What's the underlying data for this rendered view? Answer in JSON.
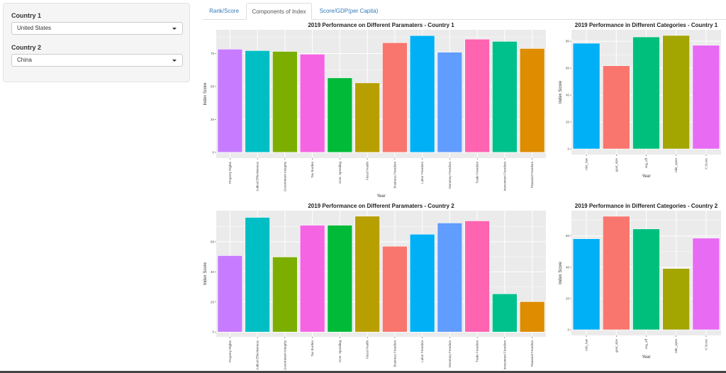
{
  "sidebar": {
    "country1": {
      "label": "Country 1",
      "value": "United States"
    },
    "country2": {
      "label": "Country 2",
      "value": "China"
    }
  },
  "tabs": [
    {
      "label": "Rank/Score",
      "active": false
    },
    {
      "label": "Components of Index",
      "active": true
    },
    {
      "label": "Score/GDP(per Capita)",
      "active": false
    }
  ],
  "chart_data": [
    {
      "id": "params-country1",
      "type": "bar",
      "title": "2019 Performance on Different Paramaters - Country 1",
      "xlabel": "Year",
      "ylabel": "Index Score",
      "categories": [
        "Property Rights",
        "Judical Effectiveness",
        "Government Integrity",
        "Tax Burden",
        "Govt. Spending",
        "Fiscal Health",
        "Business Freedom",
        "Labor Freedom",
        "Monetary Freedom",
        "Trade Freedom",
        "Investment Freedom",
        "Financial Freedom"
      ],
      "values": [
        78.3,
        77.2,
        76.6,
        74.5,
        56.5,
        52.7,
        83.2,
        88.6,
        76.0,
        85.9,
        84.2,
        78.8
      ],
      "colors": [
        "#C77CFF",
        "#00BFC4",
        "#7CAE00",
        "#F564E3",
        "#00BA38",
        "#B79F00",
        "#F8766D",
        "#00B0F6",
        "#619CFF",
        "#FF64B0",
        "#00C08B",
        "#DE8C00"
      ],
      "yticks": [
        0,
        25,
        50,
        75
      ],
      "ylim": [
        -4.4,
        93
      ],
      "grid": true
    },
    {
      "id": "categories-country1",
      "type": "bar",
      "title": "2019 Performance in Different Categories - Country 1",
      "xlabel": "Year",
      "ylabel": "Index Score",
      "categories": [
        "rule_law",
        "govt_size",
        "reg_eff",
        "mkt_open",
        "X.Score"
      ],
      "values": [
        78.5,
        61.8,
        83.2,
        84.3,
        77.0
      ],
      "colors": [
        "#00B0F6",
        "#F8766D",
        "#00BF7D",
        "#A3A500",
        "#E76BF3"
      ],
      "yticks": [
        0,
        20,
        40,
        60,
        80
      ],
      "ylim": [
        -4.2,
        88.5
      ],
      "grid": true
    },
    {
      "id": "params-country2",
      "type": "bar",
      "title": "2019 Performance on Different Paramaters - Country 2",
      "xlabel": "",
      "ylabel": "Index Score",
      "categories": [
        "Property Rights",
        "Judical Effectiveness",
        "Government Integrity",
        "Tax Burden",
        "Govt. Spending",
        "Fiscal Health",
        "Business Freedom",
        "Labor Freedom",
        "Monetary Freedom",
        "Trade Freedom",
        "Investment Freedom",
        "Financial Freedom"
      ],
      "values": [
        50.8,
        76.2,
        49.9,
        71.0,
        71.0,
        77.0,
        57.0,
        65.0,
        72.5,
        73.9,
        25.4,
        20.2
      ],
      "colors": [
        "#C77CFF",
        "#00BFC4",
        "#7CAE00",
        "#F564E3",
        "#00BA38",
        "#B79F00",
        "#F8766D",
        "#00B0F6",
        "#619CFF",
        "#FF64B0",
        "#00C08B",
        "#DE8C00"
      ],
      "yticks": [
        0,
        20,
        40,
        60
      ],
      "ylim": [
        -3.2,
        80.7
      ],
      "grid": true
    },
    {
      "id": "categories-country2",
      "type": "bar",
      "title": "2019 Performance in Different Categories - Country 2",
      "xlabel": "Year",
      "ylabel": "Index Score",
      "categories": [
        "rule_law",
        "govt_size",
        "reg_eff",
        "mkt_open",
        "X.Score"
      ],
      "values": [
        58.2,
        72.6,
        64.5,
        39.2,
        58.6
      ],
      "colors": [
        "#00B0F6",
        "#F8766D",
        "#00BF7D",
        "#A3A500",
        "#E76BF3"
      ],
      "yticks": [
        0,
        20,
        40,
        60
      ],
      "ylim": [
        -3.6,
        76.2
      ],
      "grid": true
    }
  ]
}
